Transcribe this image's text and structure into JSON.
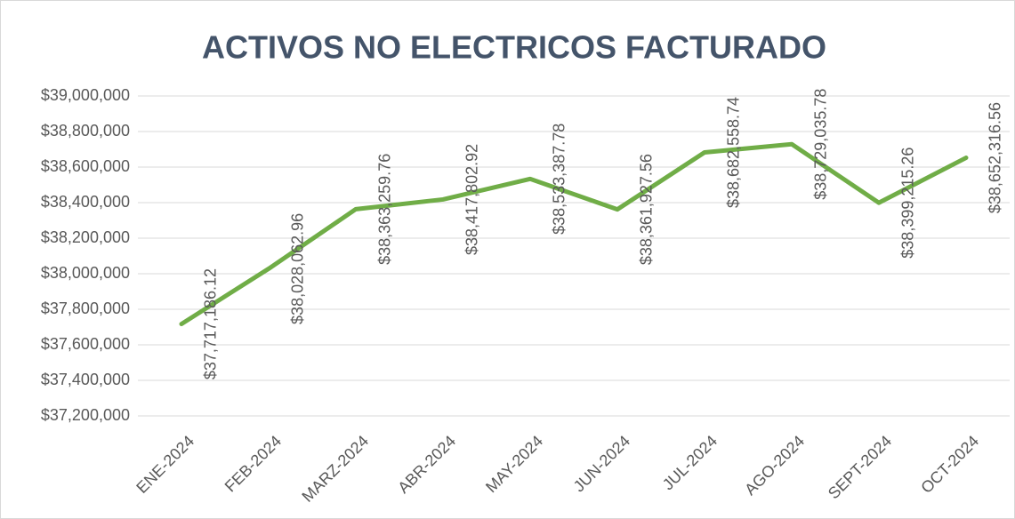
{
  "chart_data": {
    "type": "line",
    "title": "ACTIVOS NO ELECTRICOS FACTURADO",
    "categories": [
      "ENE-2024",
      "FEB-2024",
      "MARZ-2024",
      "ABR-2024",
      "MAY-2024",
      "JUN-2024",
      "JUL-2024",
      "AGO-2024",
      "SEPT-2024",
      "OCT-2024"
    ],
    "series": [
      {
        "color": "#70ad47",
        "values": [
          37717186.12,
          38028062.96,
          38363259.76,
          38417802.92,
          38533387.78,
          38361927.56,
          38682558.74,
          38729035.78,
          38399215.26,
          38652316.56
        ],
        "value_labels": [
          "$37,717,186.12",
          "$38,028,062.96",
          "$38,363,259.76",
          "$38,417,802.92",
          "$38,533,387.78",
          "$38,361,927.56",
          "$38,682,558.74",
          "$38,729,035.78",
          "$38,399,215.26",
          "$38,652,316.56"
        ]
      }
    ],
    "ylim": [
      37200000,
      39000000
    ],
    "yticks": [
      {
        "value": 37200000,
        "label": "$37,200,000"
      },
      {
        "value": 37400000,
        "label": "$37,400,000"
      },
      {
        "value": 37600000,
        "label": "$37,600,000"
      },
      {
        "value": 37800000,
        "label": "$37,800,000"
      },
      {
        "value": 38000000,
        "label": "$38,000,000"
      },
      {
        "value": 38200000,
        "label": "$38,200,000"
      },
      {
        "value": 38400000,
        "label": "$38,400,000"
      },
      {
        "value": 38600000,
        "label": "$38,600,000"
      },
      {
        "value": 38800000,
        "label": "$38,800,000"
      },
      {
        "value": 39000000,
        "label": "$39,000,000"
      }
    ],
    "grid": true
  }
}
